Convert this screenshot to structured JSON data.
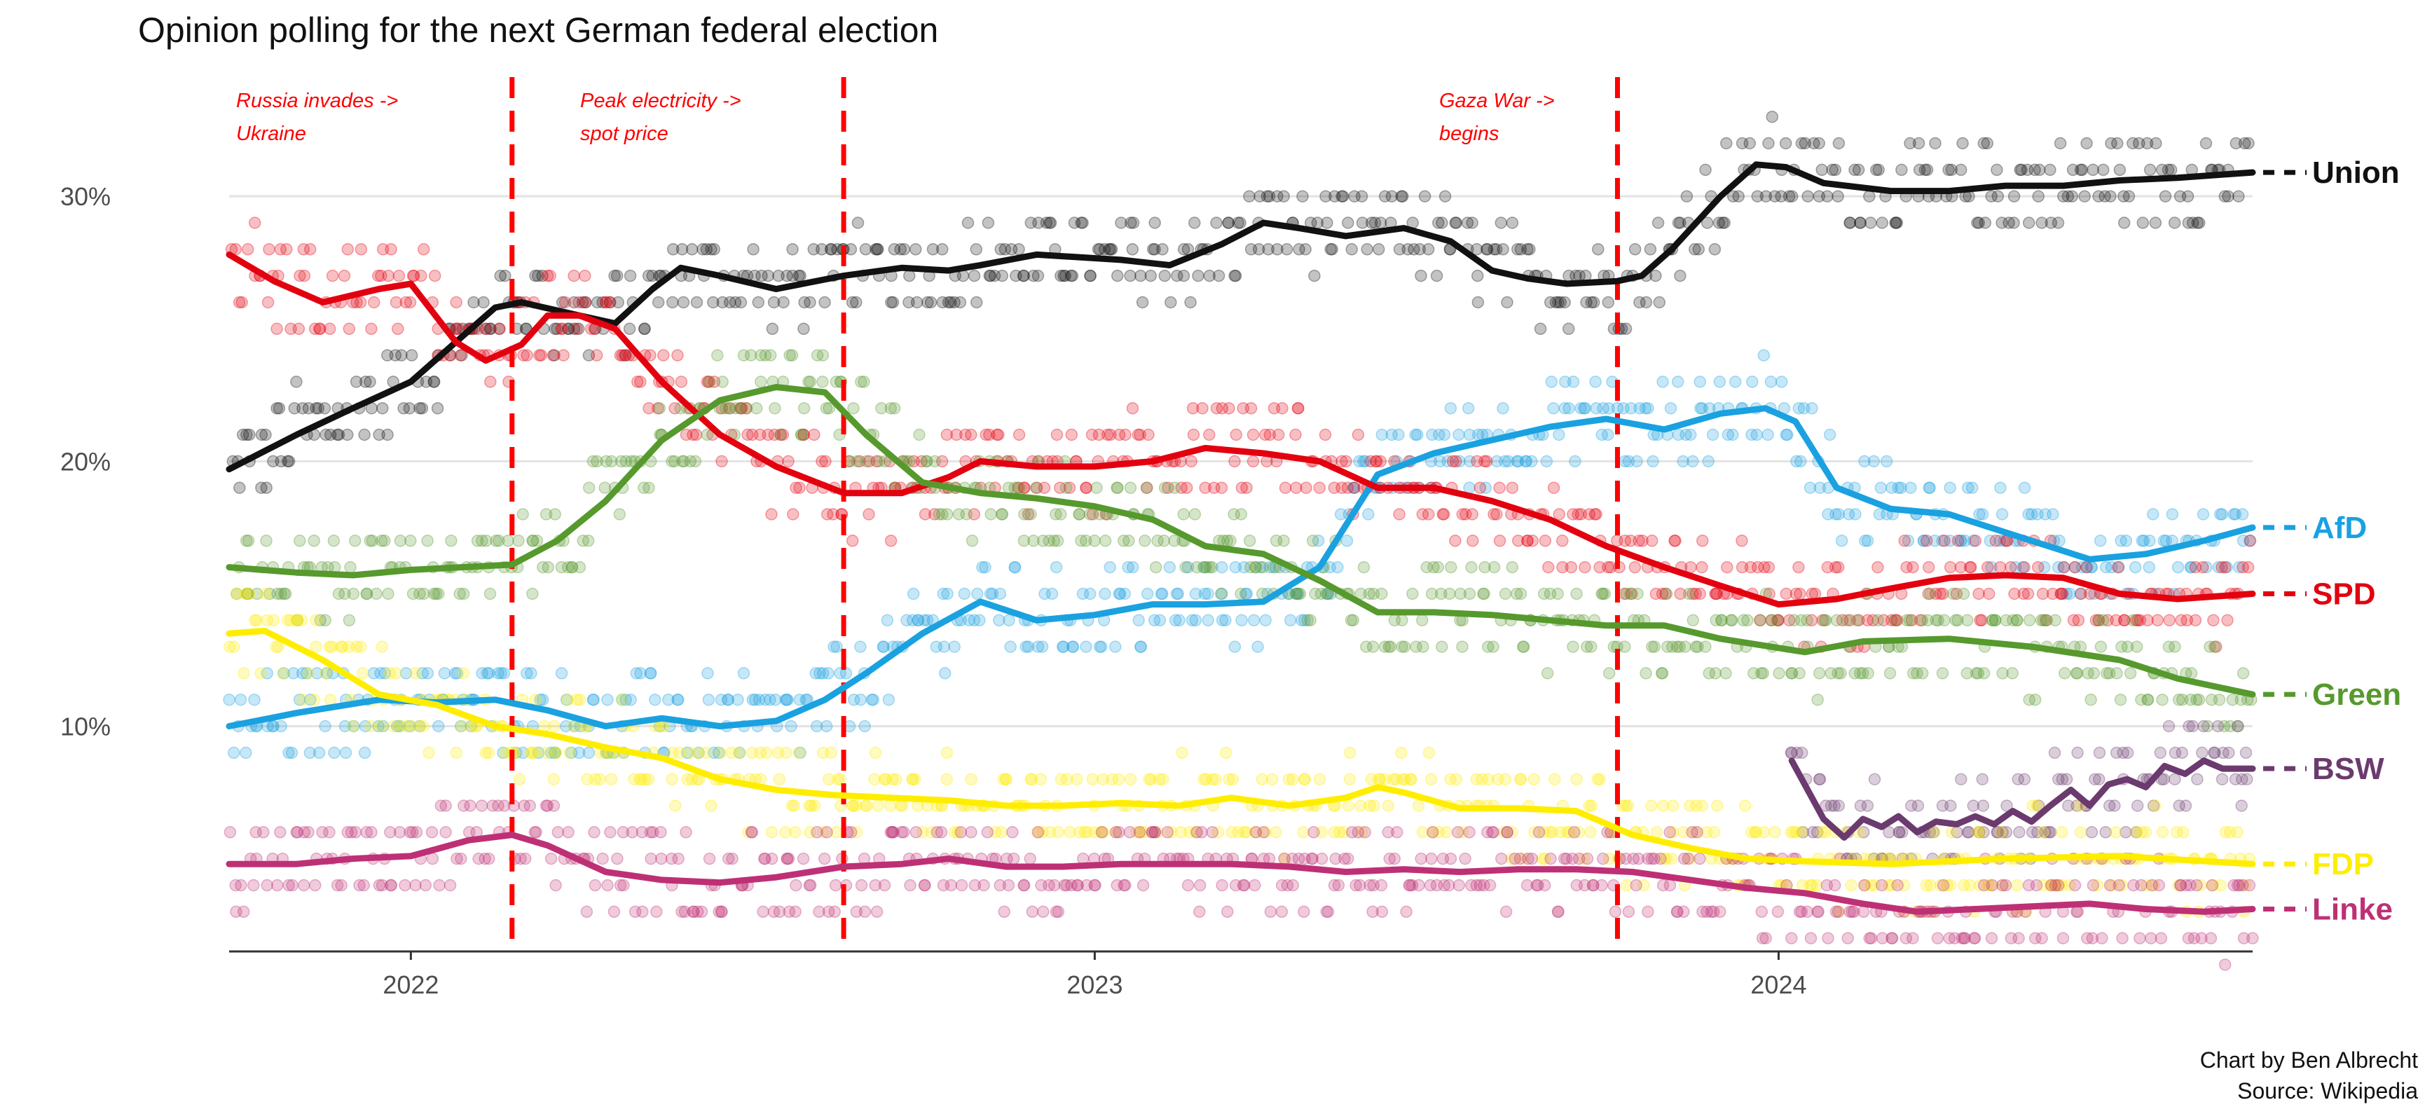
{
  "title": "Opinion polling for the next German federal election",
  "credit": {
    "line1": "Chart by Ben Albrecht",
    "line2": "Source: Wikipedia"
  },
  "chart_data": {
    "type": "scatter",
    "title": "Opinion polling for the next German federal election",
    "xlabel": "",
    "ylabel": "",
    "xlim": [
      "2021-09-26",
      "2024-09-10"
    ],
    "ylim": [
      1.5,
      34.5
    ],
    "x_ticks": [
      {
        "date": "2022-01-01",
        "label": "2022"
      },
      {
        "date": "2023-01-01",
        "label": "2023"
      },
      {
        "date": "2024-01-01",
        "label": "2024"
      }
    ],
    "y_ticks": [
      {
        "value": 10,
        "label": "10%"
      },
      {
        "value": 20,
        "label": "20%"
      },
      {
        "value": 30,
        "label": "30%"
      }
    ],
    "grid": "horizontal",
    "legend": "direct labels at right end of lines",
    "events": [
      {
        "date": "2022-02-24",
        "label_line1": "Russia invades ->",
        "label_line2": "Ukraine",
        "label_side": "left"
      },
      {
        "date": "2022-08-20",
        "label_line1": "Peak electricity ->",
        "label_line2": "spot price",
        "label_side": "left"
      },
      {
        "date": "2023-10-07",
        "label_line1": "Gaza War ->",
        "label_line2": "begins",
        "label_side": "left"
      }
    ],
    "series": [
      {
        "name": "Union",
        "color": "#111111",
        "trend": [
          [
            "2021-09-26",
            19.7
          ],
          [
            "2021-11-01",
            21.0
          ],
          [
            "2021-12-01",
            22.0
          ],
          [
            "2022-01-01",
            23.0
          ],
          [
            "2022-01-25",
            24.5
          ],
          [
            "2022-02-15",
            25.8
          ],
          [
            "2022-03-01",
            26.0
          ],
          [
            "2022-04-01",
            25.5
          ],
          [
            "2022-04-20",
            25.2
          ],
          [
            "2022-05-10",
            26.5
          ],
          [
            "2022-05-25",
            27.3
          ],
          [
            "2022-06-15",
            27.0
          ],
          [
            "2022-07-15",
            26.5
          ],
          [
            "2022-08-20",
            27.0
          ],
          [
            "2022-09-20",
            27.3
          ],
          [
            "2022-10-15",
            27.2
          ],
          [
            "2022-11-01",
            27.4
          ],
          [
            "2022-12-01",
            27.8
          ],
          [
            "2023-01-15",
            27.6
          ],
          [
            "2023-02-10",
            27.4
          ],
          [
            "2023-03-10",
            28.2
          ],
          [
            "2023-04-01",
            29.0
          ],
          [
            "2023-04-20",
            28.8
          ],
          [
            "2023-05-15",
            28.5
          ],
          [
            "2023-06-15",
            28.8
          ],
          [
            "2023-07-10",
            28.3
          ],
          [
            "2023-08-01",
            27.2
          ],
          [
            "2023-08-20",
            26.9
          ],
          [
            "2023-09-10",
            26.7
          ],
          [
            "2023-10-07",
            26.8
          ],
          [
            "2023-10-20",
            27.0
          ],
          [
            "2023-11-05",
            28.0
          ],
          [
            "2023-12-01",
            30.0
          ],
          [
            "2023-12-20",
            31.2
          ],
          [
            "2024-01-05",
            31.1
          ],
          [
            "2024-01-25",
            30.5
          ],
          [
            "2024-03-01",
            30.2
          ],
          [
            "2024-04-01",
            30.2
          ],
          [
            "2024-05-01",
            30.4
          ],
          [
            "2024-06-01",
            30.4
          ],
          [
            "2024-07-01",
            30.6
          ],
          [
            "2024-08-01",
            30.7
          ],
          [
            "2024-09-10",
            30.9
          ]
        ]
      },
      {
        "name": "AfD",
        "color": "#1aa1e0",
        "trend": [
          [
            "2021-09-26",
            10.0
          ],
          [
            "2021-11-01",
            10.5
          ],
          [
            "2021-12-15",
            11.0
          ],
          [
            "2022-01-15",
            10.9
          ],
          [
            "2022-02-15",
            11.0
          ],
          [
            "2022-03-15",
            10.6
          ],
          [
            "2022-04-15",
            10.0
          ],
          [
            "2022-05-15",
            10.3
          ],
          [
            "2022-06-15",
            10.0
          ],
          [
            "2022-07-15",
            10.2
          ],
          [
            "2022-08-10",
            11.0
          ],
          [
            "2022-09-01",
            12.0
          ],
          [
            "2022-10-01",
            13.5
          ],
          [
            "2022-11-01",
            14.7
          ],
          [
            "2022-12-01",
            14.0
          ],
          [
            "2023-01-01",
            14.2
          ],
          [
            "2023-02-01",
            14.6
          ],
          [
            "2023-03-01",
            14.6
          ],
          [
            "2023-04-01",
            14.7
          ],
          [
            "2023-05-01",
            16.0
          ],
          [
            "2023-06-01",
            19.5
          ],
          [
            "2023-07-01",
            20.3
          ],
          [
            "2023-08-01",
            20.8
          ],
          [
            "2023-09-01",
            21.3
          ],
          [
            "2023-10-01",
            21.6
          ],
          [
            "2023-11-01",
            21.2
          ],
          [
            "2023-12-01",
            21.8
          ],
          [
            "2023-12-25",
            22.0
          ],
          [
            "2024-01-10",
            21.5
          ],
          [
            "2024-02-01",
            19.0
          ],
          [
            "2024-03-01",
            18.2
          ],
          [
            "2024-04-01",
            18.0
          ],
          [
            "2024-05-15",
            17.0
          ],
          [
            "2024-06-15",
            16.3
          ],
          [
            "2024-07-15",
            16.5
          ],
          [
            "2024-08-15",
            17.0
          ],
          [
            "2024-09-10",
            17.5
          ]
        ]
      },
      {
        "name": "SPD",
        "color": "#e3000f",
        "trend": [
          [
            "2021-09-26",
            27.8
          ],
          [
            "2021-10-20",
            26.8
          ],
          [
            "2021-11-15",
            26.0
          ],
          [
            "2021-12-15",
            26.5
          ],
          [
            "2022-01-01",
            26.7
          ],
          [
            "2022-01-25",
            24.5
          ],
          [
            "2022-02-10",
            23.8
          ],
          [
            "2022-03-01",
            24.4
          ],
          [
            "2022-03-15",
            25.5
          ],
          [
            "2022-04-01",
            25.5
          ],
          [
            "2022-04-20",
            25.0
          ],
          [
            "2022-05-15",
            23.0
          ],
          [
            "2022-06-15",
            21.0
          ],
          [
            "2022-07-15",
            19.8
          ],
          [
            "2022-08-20",
            18.8
          ],
          [
            "2022-09-20",
            18.8
          ],
          [
            "2022-10-15",
            19.4
          ],
          [
            "2022-11-01",
            20.0
          ],
          [
            "2022-12-01",
            19.8
          ],
          [
            "2023-01-01",
            19.8
          ],
          [
            "2023-02-01",
            20.0
          ],
          [
            "2023-03-01",
            20.5
          ],
          [
            "2023-04-01",
            20.3
          ],
          [
            "2023-05-01",
            20.0
          ],
          [
            "2023-06-01",
            19.0
          ],
          [
            "2023-07-01",
            19.0
          ],
          [
            "2023-08-01",
            18.5
          ],
          [
            "2023-09-01",
            17.8
          ],
          [
            "2023-10-01",
            16.8
          ],
          [
            "2023-11-01",
            16.0
          ],
          [
            "2023-12-01",
            15.3
          ],
          [
            "2024-01-01",
            14.6
          ],
          [
            "2024-02-01",
            14.8
          ],
          [
            "2024-03-01",
            15.2
          ],
          [
            "2024-04-01",
            15.6
          ],
          [
            "2024-05-01",
            15.7
          ],
          [
            "2024-06-01",
            15.6
          ],
          [
            "2024-07-01",
            15.0
          ],
          [
            "2024-08-01",
            14.8
          ],
          [
            "2024-09-10",
            15.0
          ]
        ]
      },
      {
        "name": "Green",
        "color": "#56992d",
        "trend": [
          [
            "2021-09-26",
            16.0
          ],
          [
            "2021-11-01",
            15.8
          ],
          [
            "2021-12-01",
            15.7
          ],
          [
            "2022-01-01",
            15.9
          ],
          [
            "2022-02-24",
            16.1
          ],
          [
            "2022-03-20",
            17.0
          ],
          [
            "2022-04-15",
            18.5
          ],
          [
            "2022-05-15",
            20.8
          ],
          [
            "2022-06-15",
            22.3
          ],
          [
            "2022-07-15",
            22.8
          ],
          [
            "2022-08-10",
            22.6
          ],
          [
            "2022-09-01",
            21.0
          ],
          [
            "2022-10-01",
            19.2
          ],
          [
            "2022-11-01",
            18.8
          ],
          [
            "2022-12-01",
            18.6
          ],
          [
            "2023-01-01",
            18.3
          ],
          [
            "2023-02-01",
            17.8
          ],
          [
            "2023-03-01",
            16.8
          ],
          [
            "2023-04-01",
            16.5
          ],
          [
            "2023-05-01",
            15.5
          ],
          [
            "2023-06-01",
            14.3
          ],
          [
            "2023-07-01",
            14.3
          ],
          [
            "2023-08-01",
            14.2
          ],
          [
            "2023-09-01",
            14.0
          ],
          [
            "2023-10-01",
            13.8
          ],
          [
            "2023-11-01",
            13.8
          ],
          [
            "2023-12-01",
            13.3
          ],
          [
            "2024-01-15",
            12.8
          ],
          [
            "2024-02-15",
            13.2
          ],
          [
            "2024-04-01",
            13.3
          ],
          [
            "2024-05-15",
            13.0
          ],
          [
            "2024-07-01",
            12.5
          ],
          [
            "2024-08-01",
            11.8
          ],
          [
            "2024-09-10",
            11.2
          ]
        ]
      },
      {
        "name": "BSW",
        "color": "#6b3a6e",
        "trend": [
          [
            "2024-01-08",
            8.7
          ],
          [
            "2024-01-25",
            6.5
          ],
          [
            "2024-02-05",
            5.8
          ],
          [
            "2024-02-15",
            6.5
          ],
          [
            "2024-02-25",
            6.2
          ],
          [
            "2024-03-05",
            6.6
          ],
          [
            "2024-03-15",
            6.0
          ],
          [
            "2024-03-25",
            6.4
          ],
          [
            "2024-04-05",
            6.3
          ],
          [
            "2024-04-15",
            6.6
          ],
          [
            "2024-04-25",
            6.3
          ],
          [
            "2024-05-05",
            6.8
          ],
          [
            "2024-05-15",
            6.4
          ],
          [
            "2024-05-25",
            7.0
          ],
          [
            "2024-06-05",
            7.6
          ],
          [
            "2024-06-15",
            7.0
          ],
          [
            "2024-06-25",
            7.8
          ],
          [
            "2024-07-05",
            8.0
          ],
          [
            "2024-07-15",
            7.7
          ],
          [
            "2024-07-25",
            8.5
          ],
          [
            "2024-08-05",
            8.2
          ],
          [
            "2024-08-15",
            8.7
          ],
          [
            "2024-08-25",
            8.4
          ],
          [
            "2024-09-10",
            8.4
          ]
        ]
      },
      {
        "name": "FDP",
        "color": "#ffed00",
        "trend": [
          [
            "2021-09-26",
            13.5
          ],
          [
            "2021-10-15",
            13.6
          ],
          [
            "2021-11-15",
            12.5
          ],
          [
            "2021-12-15",
            11.2
          ],
          [
            "2022-01-15",
            10.8
          ],
          [
            "2022-02-15",
            10.0
          ],
          [
            "2022-03-15",
            9.7
          ],
          [
            "2022-04-15",
            9.2
          ],
          [
            "2022-05-15",
            8.8
          ],
          [
            "2022-06-15",
            8.0
          ],
          [
            "2022-07-15",
            7.6
          ],
          [
            "2022-08-15",
            7.4
          ],
          [
            "2022-09-15",
            7.3
          ],
          [
            "2022-10-15",
            7.2
          ],
          [
            "2022-11-15",
            7.0
          ],
          [
            "2022-12-15",
            7.0
          ],
          [
            "2023-01-15",
            7.1
          ],
          [
            "2023-02-15",
            7.0
          ],
          [
            "2023-03-15",
            7.3
          ],
          [
            "2023-04-15",
            7.0
          ],
          [
            "2023-05-15",
            7.3
          ],
          [
            "2023-06-01",
            7.7
          ],
          [
            "2023-06-15",
            7.5
          ],
          [
            "2023-07-15",
            6.9
          ],
          [
            "2023-08-15",
            6.9
          ],
          [
            "2023-09-15",
            6.8
          ],
          [
            "2023-10-15",
            5.9
          ],
          [
            "2023-11-15",
            5.4
          ],
          [
            "2023-12-15",
            5.0
          ],
          [
            "2024-01-15",
            4.9
          ],
          [
            "2024-03-01",
            4.8
          ],
          [
            "2024-05-01",
            5.0
          ],
          [
            "2024-07-01",
            5.1
          ],
          [
            "2024-09-10",
            4.8
          ]
        ]
      },
      {
        "name": "Linke",
        "color": "#be3075",
        "trend": [
          [
            "2021-09-26",
            4.8
          ],
          [
            "2021-11-01",
            4.8
          ],
          [
            "2021-12-01",
            5.0
          ],
          [
            "2022-01-01",
            5.1
          ],
          [
            "2022-02-01",
            5.7
          ],
          [
            "2022-02-24",
            5.9
          ],
          [
            "2022-03-15",
            5.5
          ],
          [
            "2022-04-15",
            4.5
          ],
          [
            "2022-05-15",
            4.2
          ],
          [
            "2022-06-15",
            4.1
          ],
          [
            "2022-07-15",
            4.3
          ],
          [
            "2022-08-20",
            4.7
          ],
          [
            "2022-09-20",
            4.8
          ],
          [
            "2022-10-15",
            5.0
          ],
          [
            "2022-11-15",
            4.7
          ],
          [
            "2022-12-15",
            4.7
          ],
          [
            "2023-01-15",
            4.8
          ],
          [
            "2023-02-15",
            4.8
          ],
          [
            "2023-03-15",
            4.8
          ],
          [
            "2023-04-15",
            4.7
          ],
          [
            "2023-05-15",
            4.5
          ],
          [
            "2023-06-15",
            4.6
          ],
          [
            "2023-07-15",
            4.5
          ],
          [
            "2023-08-15",
            4.6
          ],
          [
            "2023-09-15",
            4.6
          ],
          [
            "2023-10-15",
            4.5
          ],
          [
            "2023-11-15",
            4.2
          ],
          [
            "2023-12-15",
            3.9
          ],
          [
            "2024-01-15",
            3.7
          ],
          [
            "2024-02-15",
            3.3
          ],
          [
            "2024-03-15",
            3.0
          ],
          [
            "2024-04-15",
            3.1
          ],
          [
            "2024-05-15",
            3.2
          ],
          [
            "2024-06-15",
            3.3
          ],
          [
            "2024-07-15",
            3.1
          ],
          [
            "2024-08-15",
            3.0
          ],
          [
            "2024-09-10",
            3.1
          ]
        ]
      }
    ]
  }
}
